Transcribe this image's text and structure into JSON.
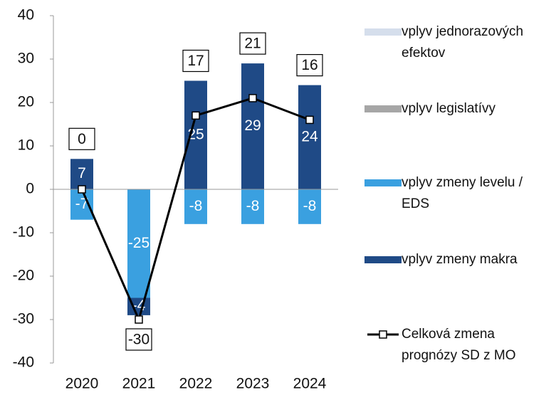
{
  "chart_data": {
    "type": "bar",
    "categories": [
      "2020",
      "2021",
      "2022",
      "2023",
      "2024"
    ],
    "ylim": [
      -40,
      40
    ],
    "yticks": [
      -40,
      -30,
      -20,
      -10,
      0,
      10,
      20,
      30,
      40
    ],
    "series": [
      {
        "name": "vplyv jednorazových efektov",
        "color": "#d5deec",
        "values": [
          0,
          0,
          0,
          0,
          0
        ]
      },
      {
        "name": "vplyv legislatívy",
        "color": "#a6a6a6",
        "values": [
          0,
          0,
          0,
          0,
          0
        ]
      },
      {
        "name": "vplyv zmeny levelu / EDS",
        "color": "#3aa0e0",
        "values": [
          -7,
          -25,
          -8,
          -8,
          -8
        ]
      },
      {
        "name": "vplyv zmeny makra",
        "color": "#1f4a86",
        "values": [
          7,
          -4,
          25,
          29,
          24
        ]
      },
      {
        "name": "Celková zmena prognózy SD z MO",
        "color": "#000000",
        "type": "line",
        "values": [
          0,
          -30,
          17,
          21,
          16
        ]
      }
    ]
  }
}
